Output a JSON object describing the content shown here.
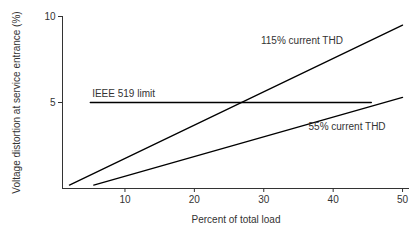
{
  "chart_data": {
    "type": "line",
    "xlabel": "Percent of total load",
    "ylabel": "Voltage distortion at service entrance (%)",
    "xlim": [
      1,
      51
    ],
    "ylim": [
      0,
      10
    ],
    "xticks": [
      10,
      20,
      30,
      40,
      50
    ],
    "yticks": [
      5,
      10
    ],
    "grid": false,
    "series": [
      {
        "name": "115% current THD",
        "color": "#000000",
        "x": [
          2,
          50
        ],
        "values": [
          0.2,
          9.5
        ],
        "label": {
          "x": 35.5,
          "y": 8.6
        }
      },
      {
        "name": "IEEE 519 limit",
        "color": "#000000",
        "x": [
          5,
          45.5
        ],
        "values": [
          5,
          5
        ],
        "label": {
          "x": 9.8,
          "y": 5.5
        }
      },
      {
        "name": "55% current THD",
        "color": "#000000",
        "x": [
          5.5,
          50
        ],
        "values": [
          0.2,
          5.3
        ],
        "label": {
          "x": 42,
          "y": 3.6
        }
      }
    ]
  }
}
